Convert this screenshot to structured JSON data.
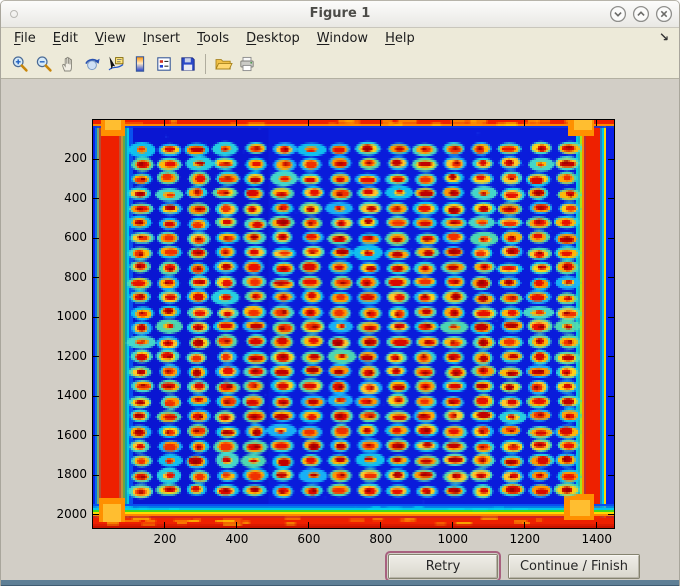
{
  "window": {
    "title": "Figure 1",
    "controls": [
      "shade-window",
      "maximize-window",
      "close-window"
    ]
  },
  "menu": {
    "items": [
      "File",
      "Edit",
      "View",
      "Insert",
      "Tools",
      "Desktop",
      "Window",
      "Help"
    ],
    "dock_arrow": "↘"
  },
  "toolbar": {
    "icons": [
      "zoom-in",
      "zoom-out",
      "pan",
      "rotate-3d",
      "data-cursor",
      "insert-colorbar",
      "insert-legend",
      "save-figure",
      "open-file",
      "print-figure"
    ]
  },
  "buttons": {
    "retry": "Retry",
    "continue_finish": "Continue / Finish"
  },
  "plot": {
    "description": "jet-colormap scan of a 384-well microplate (24 rows x 16 columns of spots)",
    "x_ticks": [
      200,
      400,
      600,
      800,
      1000,
      1200,
      1400
    ],
    "y_ticks": [
      200,
      400,
      600,
      800,
      1000,
      1200,
      1400,
      1600,
      1800,
      2000
    ],
    "x_lim": [
      0,
      1448
    ],
    "y_lim": [
      0,
      2066
    ],
    "image": {
      "colormap": "jet",
      "grid": {
        "rows": 24,
        "cols": 16,
        "x_start": 48,
        "x_step": 28.55,
        "y_start": 29,
        "y_step": 14.85
      },
      "seed": 12,
      "background": "#0a16d2",
      "background_right": "#0a1cdb",
      "edge_red": "#ee2000",
      "edge_orange": "#ff8800",
      "edge_yellow": "#ffd800",
      "edge_green": "#40d820",
      "edge_cyan": "#00c8e8",
      "edge_lightblue": "#0850f0",
      "corner_orange": "#ff9000",
      "corner_orange_light": "#ffbe30",
      "halo_colors": [
        "#10c8f0",
        "#28d8e0",
        "#48e0c8",
        "#18b8f8",
        "#50e0b0"
      ],
      "mid_colors": [
        "#ffd018",
        "#ffb808",
        "#ffa808",
        "#ffc828",
        "#ff9800"
      ],
      "center_colors": [
        "#e81000",
        "#d80800",
        "#c00000",
        "#f03000"
      ],
      "speck_color": "#980000"
    }
  },
  "colors": {
    "chrome_bg": "#edead9",
    "figure_bg": "#d2cec6",
    "bottom_border": "#5e7f96",
    "focus_ring": "#a8617f"
  }
}
